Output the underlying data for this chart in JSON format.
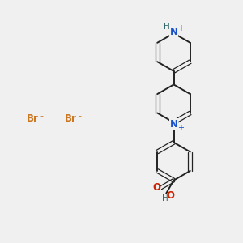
{
  "background_color": "#f0f0f0",
  "bond_color": "#222222",
  "nitrogen_color": "#1a52c9",
  "oxygen_color": "#cc2200",
  "bromine_color": "#cc7722",
  "hydrogen_color": "#336666",
  "figsize": [
    3.0,
    3.0
  ],
  "dpi": 100,
  "xlim": [
    0,
    10
  ],
  "ylim": [
    0,
    10
  ]
}
